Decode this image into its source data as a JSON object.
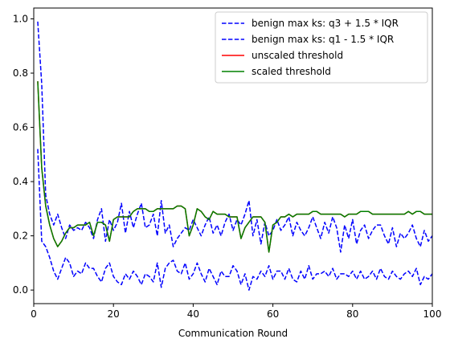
{
  "chart_data": {
    "type": "line",
    "title": "",
    "xlabel": "Communication Round",
    "ylabel": "",
    "xlim": [
      0,
      100
    ],
    "ylim": [
      -0.05,
      1.04
    ],
    "xticks": [
      0,
      20,
      40,
      60,
      80,
      100
    ],
    "yticks": [
      0.0,
      0.2,
      0.4,
      0.6,
      0.8,
      1.0
    ],
    "xtick_labels": [
      "0",
      "20",
      "40",
      "60",
      "80",
      "100"
    ],
    "ytick_labels": [
      "0.0",
      "0.2",
      "0.4",
      "0.6",
      "0.8",
      "1.0"
    ],
    "legend_position": "top-right",
    "x": [
      1,
      2,
      3,
      4,
      5,
      6,
      7,
      8,
      9,
      10,
      11,
      12,
      13,
      14,
      15,
      16,
      17,
      18,
      19,
      20,
      21,
      22,
      23,
      24,
      25,
      26,
      27,
      28,
      29,
      30,
      31,
      32,
      33,
      34,
      35,
      36,
      37,
      38,
      39,
      40,
      41,
      42,
      43,
      44,
      45,
      46,
      47,
      48,
      49,
      50,
      51,
      52,
      53,
      54,
      55,
      56,
      57,
      58,
      59,
      60,
      61,
      62,
      63,
      64,
      65,
      66,
      67,
      68,
      69,
      70,
      71,
      72,
      73,
      74,
      75,
      76,
      77,
      78,
      79,
      80,
      81,
      82,
      83,
      84,
      85,
      86,
      87,
      88,
      89,
      90,
      91,
      92,
      93,
      94,
      95,
      96,
      97,
      98,
      99,
      100
    ],
    "series": [
      {
        "name": "benign max ks: q3 + 1.5 * IQR",
        "color": "#0000ff",
        "dash": true,
        "values": [
          0.99,
          0.76,
          0.35,
          0.28,
          0.24,
          0.28,
          0.23,
          0.19,
          0.24,
          0.22,
          0.23,
          0.22,
          0.25,
          0.23,
          0.19,
          0.26,
          0.3,
          0.18,
          0.26,
          0.22,
          0.25,
          0.32,
          0.21,
          0.29,
          0.23,
          0.28,
          0.32,
          0.23,
          0.24,
          0.28,
          0.2,
          0.33,
          0.21,
          0.24,
          0.16,
          0.19,
          0.21,
          0.23,
          0.22,
          0.26,
          0.23,
          0.2,
          0.24,
          0.27,
          0.21,
          0.24,
          0.2,
          0.25,
          0.28,
          0.22,
          0.26,
          0.24,
          0.28,
          0.33,
          0.2,
          0.26,
          0.17,
          0.25,
          0.2,
          0.22,
          0.26,
          0.22,
          0.24,
          0.27,
          0.2,
          0.25,
          0.22,
          0.2,
          0.23,
          0.27,
          0.23,
          0.19,
          0.25,
          0.21,
          0.27,
          0.23,
          0.14,
          0.24,
          0.19,
          0.26,
          0.17,
          0.22,
          0.24,
          0.19,
          0.22,
          0.24,
          0.24,
          0.2,
          0.17,
          0.23,
          0.16,
          0.21,
          0.19,
          0.21,
          0.24,
          0.19,
          0.16,
          0.22,
          0.18,
          0.2
        ]
      },
      {
        "name": "benign max ks: q1 - 1.5 * IQR",
        "color": "#0000ff",
        "dash": true,
        "values": [
          0.52,
          0.18,
          0.16,
          0.12,
          0.07,
          0.04,
          0.08,
          0.12,
          0.1,
          0.05,
          0.07,
          0.06,
          0.1,
          0.08,
          0.08,
          0.05,
          0.03,
          0.08,
          0.1,
          0.05,
          0.03,
          0.02,
          0.06,
          0.04,
          0.07,
          0.05,
          0.02,
          0.06,
          0.05,
          0.03,
          0.1,
          0.01,
          0.08,
          0.1,
          0.11,
          0.07,
          0.06,
          0.1,
          0.04,
          0.06,
          0.1,
          0.06,
          0.03,
          0.08,
          0.05,
          0.02,
          0.07,
          0.05,
          0.05,
          0.09,
          0.07,
          0.02,
          0.06,
          0.0,
          0.05,
          0.04,
          0.07,
          0.05,
          0.09,
          0.04,
          0.07,
          0.07,
          0.04,
          0.08,
          0.04,
          0.03,
          0.07,
          0.04,
          0.09,
          0.04,
          0.06,
          0.06,
          0.07,
          0.05,
          0.08,
          0.04,
          0.06,
          0.06,
          0.05,
          0.07,
          0.04,
          0.07,
          0.04,
          0.05,
          0.07,
          0.04,
          0.08,
          0.05,
          0.04,
          0.07,
          0.05,
          0.04,
          0.06,
          0.07,
          0.05,
          0.08,
          0.02,
          0.05,
          0.04,
          0.06
        ]
      },
      {
        "name": "unscaled threshold",
        "color": "#ff0000",
        "dash": false,
        "values": [
          0.77,
          0.45,
          0.31,
          0.24,
          0.19,
          0.16,
          0.18,
          0.21,
          0.23,
          0.23,
          0.24,
          0.24,
          0.24,
          0.25,
          0.2,
          0.25,
          0.25,
          0.24,
          0.18,
          0.26,
          0.27,
          0.27,
          0.27,
          0.27,
          0.29,
          0.3,
          0.3,
          0.3,
          0.29,
          0.29,
          0.3,
          0.3,
          0.3,
          0.3,
          0.3,
          0.31,
          0.31,
          0.3,
          0.2,
          0.24,
          0.3,
          0.29,
          0.27,
          0.26,
          0.29,
          0.28,
          0.28,
          0.28,
          0.27,
          0.27,
          0.27,
          0.19,
          0.23,
          0.25,
          0.27,
          0.27,
          0.27,
          0.25,
          0.14,
          0.24,
          0.25,
          0.27,
          0.27,
          0.28,
          0.27,
          0.28,
          0.28,
          0.28,
          0.28,
          0.29,
          0.29,
          0.28,
          0.28,
          0.28,
          0.28,
          0.28,
          0.28,
          0.27,
          0.28,
          0.28,
          0.28,
          0.29,
          0.29,
          0.29,
          0.28,
          0.28,
          0.28,
          0.28,
          0.28,
          0.28,
          0.28,
          0.28,
          0.28,
          0.29,
          0.28,
          0.29,
          0.29,
          0.28,
          0.28,
          0.28
        ]
      },
      {
        "name": "scaled threshold",
        "color": "#008000",
        "dash": false,
        "values": [
          0.77,
          0.45,
          0.31,
          0.24,
          0.19,
          0.16,
          0.18,
          0.21,
          0.23,
          0.23,
          0.24,
          0.24,
          0.24,
          0.25,
          0.2,
          0.25,
          0.25,
          0.24,
          0.18,
          0.26,
          0.27,
          0.27,
          0.27,
          0.27,
          0.29,
          0.3,
          0.3,
          0.3,
          0.29,
          0.29,
          0.3,
          0.3,
          0.3,
          0.3,
          0.3,
          0.31,
          0.31,
          0.3,
          0.2,
          0.24,
          0.3,
          0.29,
          0.27,
          0.26,
          0.29,
          0.28,
          0.28,
          0.28,
          0.27,
          0.27,
          0.27,
          0.19,
          0.23,
          0.25,
          0.27,
          0.27,
          0.27,
          0.25,
          0.14,
          0.24,
          0.25,
          0.27,
          0.27,
          0.28,
          0.27,
          0.28,
          0.28,
          0.28,
          0.28,
          0.29,
          0.29,
          0.28,
          0.28,
          0.28,
          0.28,
          0.28,
          0.28,
          0.27,
          0.28,
          0.28,
          0.28,
          0.29,
          0.29,
          0.29,
          0.28,
          0.28,
          0.28,
          0.28,
          0.28,
          0.28,
          0.28,
          0.28,
          0.28,
          0.29,
          0.28,
          0.29,
          0.29,
          0.28,
          0.28,
          0.28
        ]
      }
    ]
  }
}
